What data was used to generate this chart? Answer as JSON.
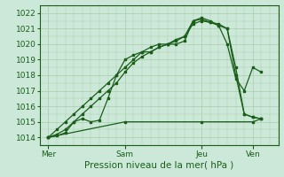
{
  "xlabel": "Pression niveau de la mer( hPa )",
  "bg_color": "#cce8d8",
  "line_color": "#1a5e1a",
  "grid_color": "#aaccaa",
  "ylim": [
    1013.5,
    1022.5
  ],
  "yticks": [
    1014,
    1015,
    1016,
    1017,
    1018,
    1019,
    1020,
    1021,
    1022
  ],
  "day_labels": [
    "Mer",
    "Sam",
    "Jeu",
    "Ven"
  ],
  "day_positions": [
    0,
    36,
    72,
    96
  ],
  "xlim": [
    -4,
    108
  ],
  "line1_x": [
    0,
    4,
    8,
    12,
    16,
    20,
    24,
    28,
    32,
    36,
    40,
    44,
    48,
    52,
    56,
    60,
    64,
    68,
    72,
    76,
    80,
    84,
    88,
    92,
    96,
    100
  ],
  "line1_y": [
    1014.0,
    1014.1,
    1014.3,
    1015.0,
    1015.2,
    1015.0,
    1015.1,
    1016.5,
    1018.0,
    1019.0,
    1019.3,
    1019.5,
    1019.5,
    1019.8,
    1020.0,
    1020.0,
    1020.2,
    1021.5,
    1021.7,
    1021.5,
    1021.2,
    1020.0,
    1017.8,
    1017.0,
    1018.5,
    1018.2
  ],
  "line2_x": [
    0,
    4,
    8,
    12,
    16,
    20,
    24,
    28,
    32,
    36,
    40,
    44,
    48,
    52,
    56,
    60,
    64,
    68,
    72,
    76,
    80,
    84,
    88,
    92,
    96,
    100
  ],
  "line2_y": [
    1014.0,
    1014.5,
    1015.0,
    1015.5,
    1016.0,
    1016.5,
    1017.0,
    1017.5,
    1018.0,
    1018.5,
    1019.0,
    1019.5,
    1019.8,
    1020.0,
    1020.0,
    1020.3,
    1020.5,
    1021.5,
    1021.6,
    1021.4,
    1021.2,
    1021.0,
    1018.5,
    1015.5,
    1015.3,
    1015.2
  ],
  "line3_x": [
    0,
    36,
    72,
    96,
    100
  ],
  "line3_y": [
    1014.0,
    1015.0,
    1015.0,
    1015.0,
    1015.2
  ],
  "line4_x": [
    0,
    4,
    8,
    12,
    16,
    20,
    24,
    28,
    32,
    36,
    40,
    44,
    48,
    52,
    56,
    60,
    64,
    68,
    72,
    76,
    80,
    84,
    88,
    92,
    96,
    100
  ],
  "line4_y": [
    1014.0,
    1014.2,
    1014.5,
    1015.0,
    1015.5,
    1016.0,
    1016.5,
    1017.0,
    1017.5,
    1018.2,
    1018.8,
    1019.2,
    1019.5,
    1019.8,
    1020.0,
    1020.2,
    1020.5,
    1021.3,
    1021.5,
    1021.4,
    1021.3,
    1021.0,
    1018.0,
    1015.5,
    1015.3,
    1015.2
  ]
}
